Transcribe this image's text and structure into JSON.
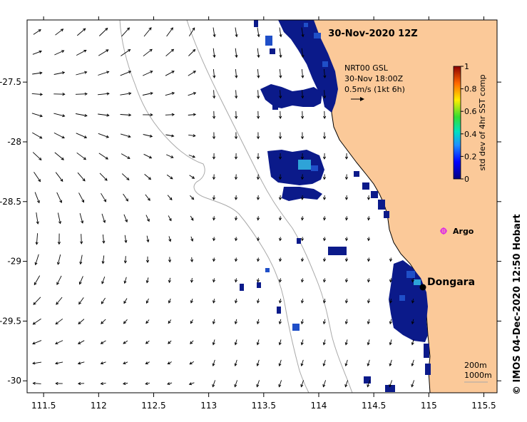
{
  "title": "30-Nov-2020 12Z",
  "current_info": {
    "line1": "NRT00 GSL",
    "line2": "30-Nov 18:00Z",
    "line3": "0.5m/s (1kt 6h)"
  },
  "colorbar": {
    "label": "std dev of 4hr SST comp",
    "ticks": [
      "0",
      "0.2",
      "0.4",
      "0.6",
      "0.8",
      "1"
    ]
  },
  "places": {
    "dongara": "Dongara",
    "argo": "Argo"
  },
  "isobaths": {
    "a": "200m",
    "b": "1000m"
  },
  "x_ticks": [
    "111.5",
    "112",
    "112.5",
    "113",
    "113.5",
    "114",
    "114.5",
    "115",
    "115.5"
  ],
  "y_ticks": [
    "-27.5",
    "-28",
    "-28.5",
    "-29",
    "-29.5",
    "-30"
  ],
  "copyright": "© IMOS 04-Dec-2020 12:50 Hobart",
  "colors": {
    "land": "#fbc999",
    "argo": "#e032e0",
    "sst_dark": "#0b1a8a",
    "sst_mid": "#1f4fc8",
    "sst_light": "#2ea3d8"
  },
  "map_extent": {
    "lon": [
      111.35,
      115.62
    ],
    "lat": [
      -30.1,
      -26.98
    ]
  }
}
